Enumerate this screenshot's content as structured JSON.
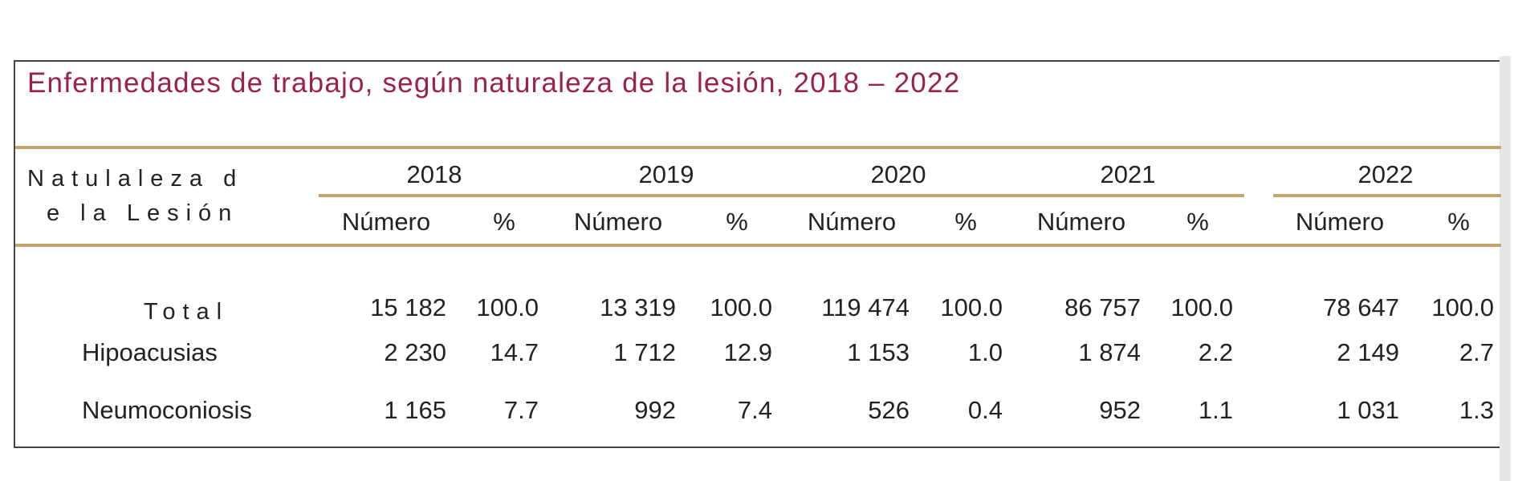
{
  "title": "Enfermedades de trabajo, según naturaleza de la lesión, 2018 – 2022",
  "header": {
    "row_label_line1": "Natulaleza d",
    "row_label_line2": "e la Lesión",
    "years": [
      "2018",
      "2019",
      "2020",
      "2021",
      "2022"
    ],
    "sub_number": "Número",
    "sub_percent": "%"
  },
  "rows": [
    {
      "label": "Total",
      "values": [
        [
          "15 182",
          "100.0"
        ],
        [
          "13 319",
          "100.0"
        ],
        [
          "119 474",
          "100.0"
        ],
        [
          "86 757",
          "100.0"
        ],
        [
          "78 647",
          "100.0"
        ]
      ]
    },
    {
      "label": "Hipoacusias",
      "values": [
        [
          "2 230",
          "14.7"
        ],
        [
          "1 712",
          "12.9"
        ],
        [
          "1 153",
          "1.0"
        ],
        [
          "1 874",
          "2.2"
        ],
        [
          "2 149",
          "2.7"
        ]
      ]
    },
    {
      "label": "Neumoconiosis",
      "values": [
        [
          "1 165",
          "7.7"
        ],
        [
          "992",
          "7.4"
        ],
        [
          "526",
          "0.4"
        ],
        [
          "952",
          "1.1"
        ],
        [
          "1 031",
          "1.3"
        ]
      ]
    }
  ],
  "colors": {
    "title": "#9b2247",
    "rule": "#c4a56f"
  }
}
